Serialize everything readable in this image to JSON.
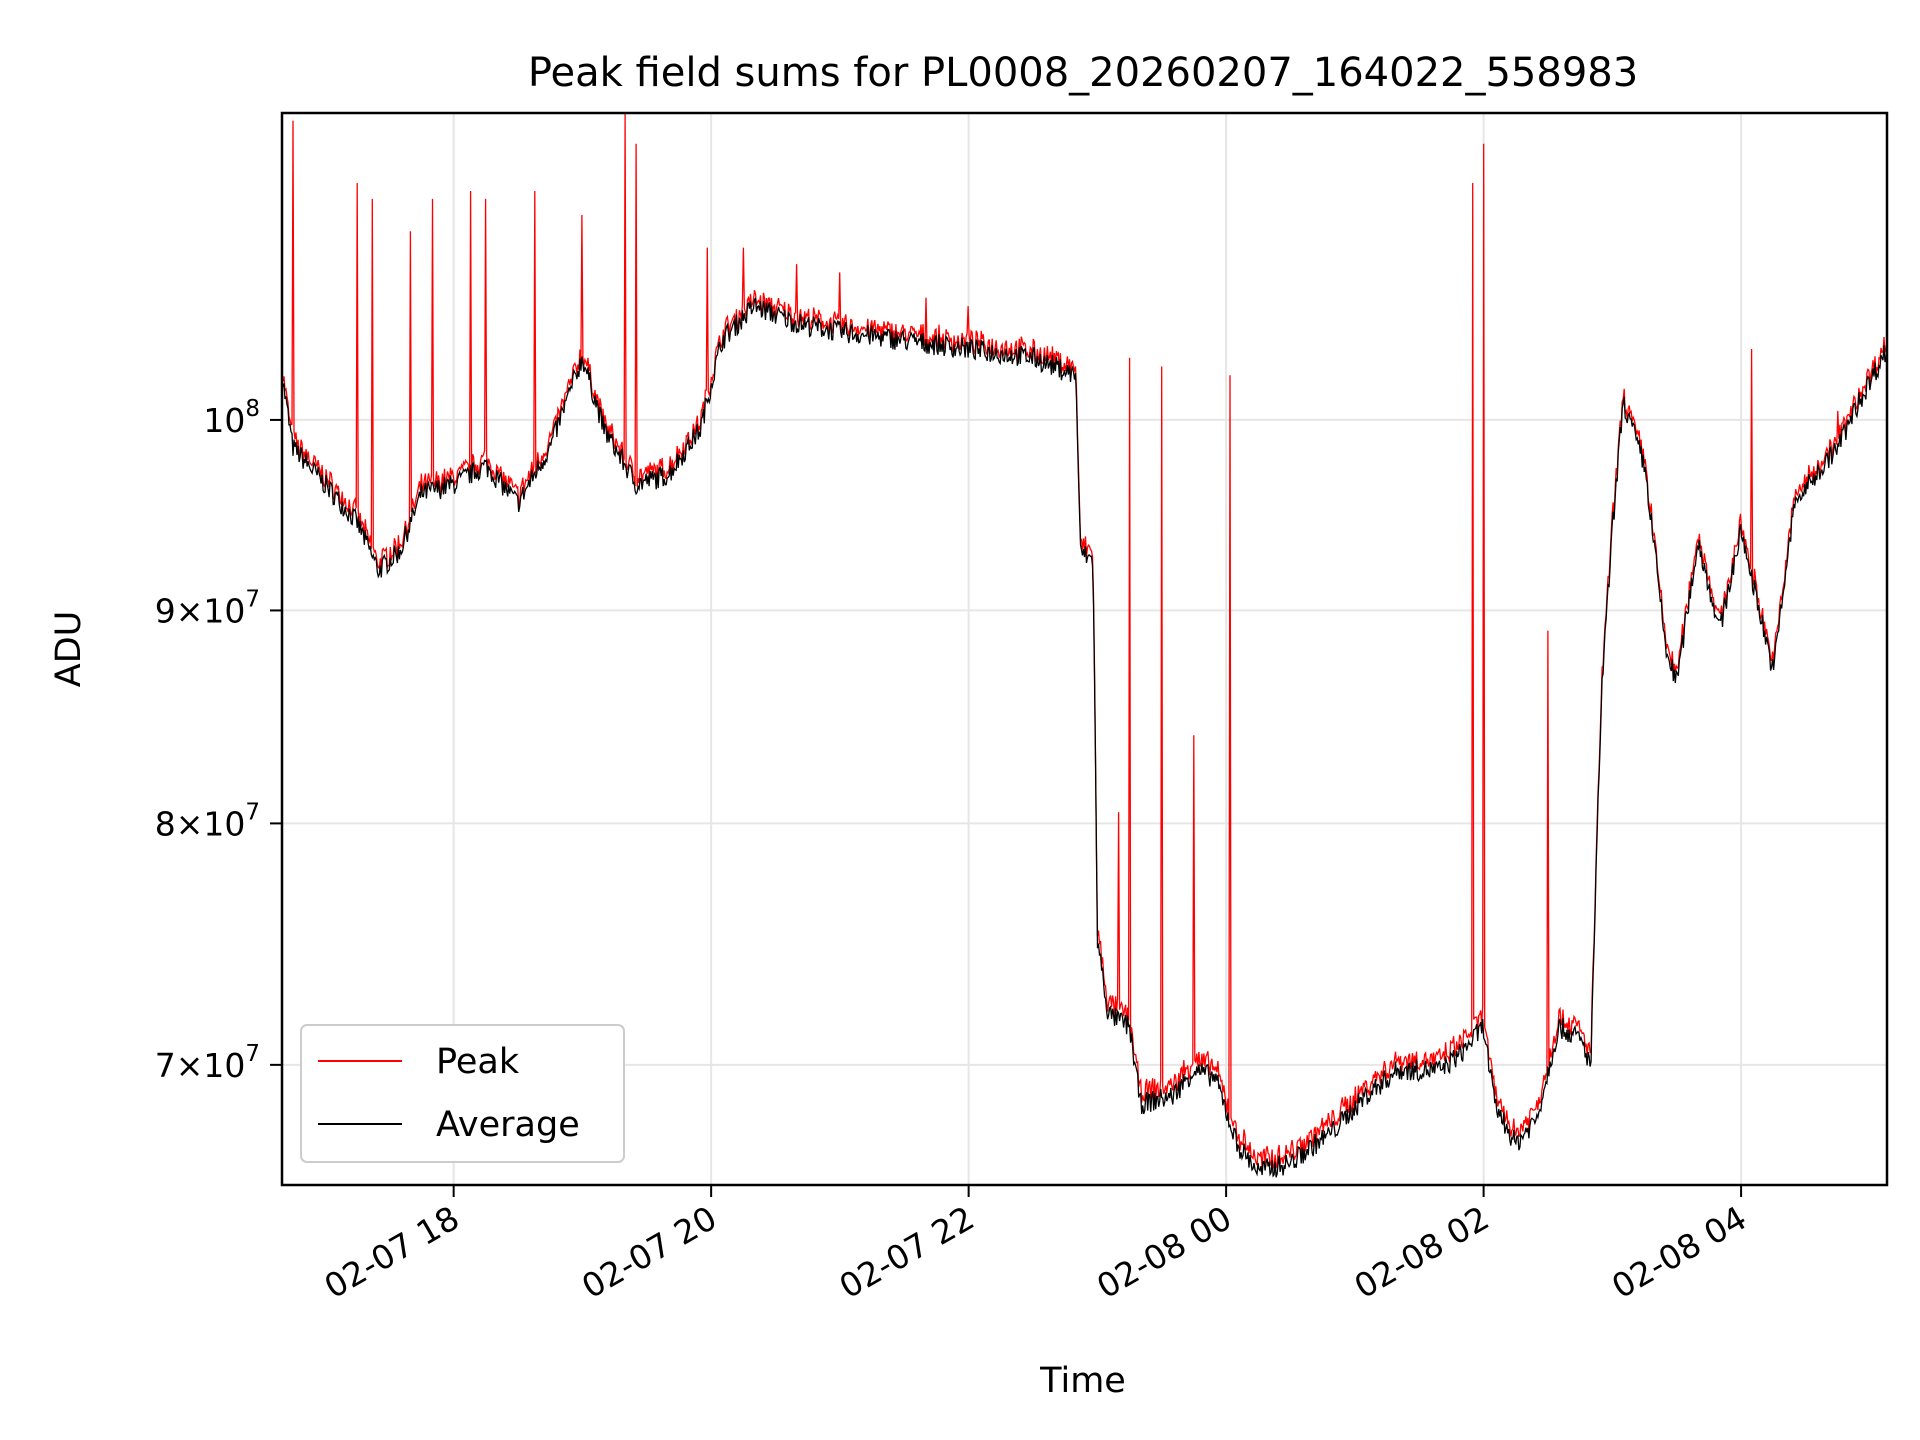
{
  "chart_data": {
    "type": "line",
    "title": "Peak field sums for PL0008_20260207_164022_558983",
    "xlabel": "Time",
    "ylabel": "ADU",
    "y_scale": "log",
    "ylim": [
      65500000,
      118500000
    ],
    "xlim": [
      "2026-02-07 16:40",
      "2026-02-08 05:08"
    ],
    "grid": true,
    "legend": {
      "position": "lower-left",
      "entries": [
        "Peak",
        "Average"
      ]
    },
    "x_ticks": [
      {
        "value": "2026-02-07 18:00",
        "label": "02-07 18"
      },
      {
        "value": "2026-02-07 20:00",
        "label": "02-07 20"
      },
      {
        "value": "2026-02-07 22:00",
        "label": "02-07 22"
      },
      {
        "value": "2026-02-08 00:00",
        "label": "02-08 00"
      },
      {
        "value": "2026-02-08 02:00",
        "label": "02-08 02"
      },
      {
        "value": "2026-02-08 04:00",
        "label": "02-08 04"
      }
    ],
    "y_ticks": [
      {
        "value": 70000000,
        "mantissa": "7",
        "exponent": "7"
      },
      {
        "value": 80000000,
        "mantissa": "8",
        "exponent": "7"
      },
      {
        "value": 90000000,
        "mantissa": "9",
        "exponent": "7"
      },
      {
        "value": 100000000,
        "mantissa": "",
        "exponent": "8"
      }
    ],
    "series": [
      {
        "name": "Average",
        "color": "#000000",
        "points": [
          [
            "2026-02-07 16:40",
            102500000
          ],
          [
            "2026-02-07 16:45",
            98500000
          ],
          [
            "2026-02-07 17:00",
            96500000
          ],
          [
            "2026-02-07 17:15",
            94500000
          ],
          [
            "2026-02-07 17:25",
            92000000
          ],
          [
            "2026-02-07 17:35",
            93000000
          ],
          [
            "2026-02-07 17:45",
            96000000
          ],
          [
            "2026-02-07 18:00",
            96500000
          ],
          [
            "2026-02-07 18:15",
            97500000
          ],
          [
            "2026-02-07 18:30",
            95500000
          ],
          [
            "2026-02-07 18:45",
            98500000
          ],
          [
            "2026-02-07 19:00",
            103500000
          ],
          [
            "2026-02-07 19:10",
            99500000
          ],
          [
            "2026-02-07 19:25",
            96500000
          ],
          [
            "2026-02-07 19:40",
            97000000
          ],
          [
            "2026-02-07 19:55",
            99500000
          ],
          [
            "2026-02-07 20:05",
            104500000
          ],
          [
            "2026-02-07 20:20",
            106500000
          ],
          [
            "2026-02-07 20:40",
            105500000
          ],
          [
            "2026-02-07 21:00",
            105000000
          ],
          [
            "2026-02-07 21:30",
            104500000
          ],
          [
            "2026-02-07 22:00",
            104000000
          ],
          [
            "2026-02-07 22:30",
            103500000
          ],
          [
            "2026-02-07 22:50",
            102500000
          ],
          [
            "2026-02-07 22:52",
            93000000
          ],
          [
            "2026-02-07 22:58",
            92500000
          ],
          [
            "2026-02-07 23:00",
            75000000
          ],
          [
            "2026-02-07 23:05",
            72000000
          ],
          [
            "2026-02-07 23:15",
            71500000
          ],
          [
            "2026-02-07 23:20",
            68500000
          ],
          [
            "2026-02-07 23:35",
            68800000
          ],
          [
            "2026-02-07 23:45",
            69800000
          ],
          [
            "2026-02-07 23:55",
            69500000
          ],
          [
            "2026-02-08 00:05",
            67000000
          ],
          [
            "2026-02-08 00:15",
            66000000
          ],
          [
            "2026-02-08 00:30",
            66300000
          ],
          [
            "2026-02-08 00:50",
            67500000
          ],
          [
            "2026-02-08 01:05",
            68800000
          ],
          [
            "2026-02-08 01:20",
            69800000
          ],
          [
            "2026-02-08 01:40",
            69800000
          ],
          [
            "2026-02-08 01:50",
            70500000
          ],
          [
            "2026-02-08 02:00",
            71500000
          ],
          [
            "2026-02-08 02:05",
            68500000
          ],
          [
            "2026-02-08 02:15",
            67000000
          ],
          [
            "2026-02-08 02:25",
            68000000
          ],
          [
            "2026-02-08 02:35",
            71500000
          ],
          [
            "2026-02-08 02:45",
            71000000
          ],
          [
            "2026-02-08 02:50",
            70000000
          ],
          [
            "2026-02-08 02:55",
            86000000
          ],
          [
            "2026-02-08 03:00",
            94000000
          ],
          [
            "2026-02-08 03:05",
            101000000
          ],
          [
            "2026-02-08 03:15",
            97500000
          ],
          [
            "2026-02-08 03:25",
            88000000
          ],
          [
            "2026-02-08 03:30",
            86500000
          ],
          [
            "2026-02-08 03:40",
            93500000
          ],
          [
            "2026-02-08 03:50",
            89000000
          ],
          [
            "2026-02-08 04:00",
            94000000
          ],
          [
            "2026-02-08 04:15",
            87000000
          ],
          [
            "2026-02-08 04:25",
            95500000
          ],
          [
            "2026-02-08 04:35",
            97000000
          ],
          [
            "2026-02-08 04:45",
            98500000
          ],
          [
            "2026-02-08 04:55",
            101000000
          ],
          [
            "2026-02-08 05:08",
            104000000
          ]
        ]
      },
      {
        "name": "Peak",
        "color": "#ff0000",
        "offset": 400000,
        "spikes": [
          [
            "2026-02-07 16:45",
            118000000
          ],
          [
            "2026-02-07 17:15",
            114000000
          ],
          [
            "2026-02-07 17:22",
            113000000
          ],
          [
            "2026-02-07 17:40",
            111000000
          ],
          [
            "2026-02-07 17:50",
            113000000
          ],
          [
            "2026-02-07 18:08",
            113500000
          ],
          [
            "2026-02-07 18:15",
            113000000
          ],
          [
            "2026-02-07 18:38",
            113500000
          ],
          [
            "2026-02-07 19:00",
            112000000
          ],
          [
            "2026-02-07 19:20",
            118500000
          ],
          [
            "2026-02-07 19:25",
            116500000
          ],
          [
            "2026-02-07 19:58",
            110000000
          ],
          [
            "2026-02-07 20:15",
            110000000
          ],
          [
            "2026-02-07 20:40",
            109000000
          ],
          [
            "2026-02-07 21:00",
            108500000
          ],
          [
            "2026-02-07 21:40",
            107000000
          ],
          [
            "2026-02-07 22:00",
            106500000
          ],
          [
            "2026-02-07 23:10",
            80500000
          ],
          [
            "2026-02-07 23:15",
            103500000
          ],
          [
            "2026-02-07 23:30",
            103000000
          ],
          [
            "2026-02-07 23:45",
            84000000
          ],
          [
            "2026-02-08 00:02",
            102500000
          ],
          [
            "2026-02-08 01:55",
            114000000
          ],
          [
            "2026-02-08 02:00",
            116500000
          ],
          [
            "2026-02-08 02:30",
            89000000
          ],
          [
            "2026-02-08 04:05",
            104000000
          ],
          [
            "2026-02-08 04:45",
            100500000
          ]
        ]
      }
    ]
  }
}
